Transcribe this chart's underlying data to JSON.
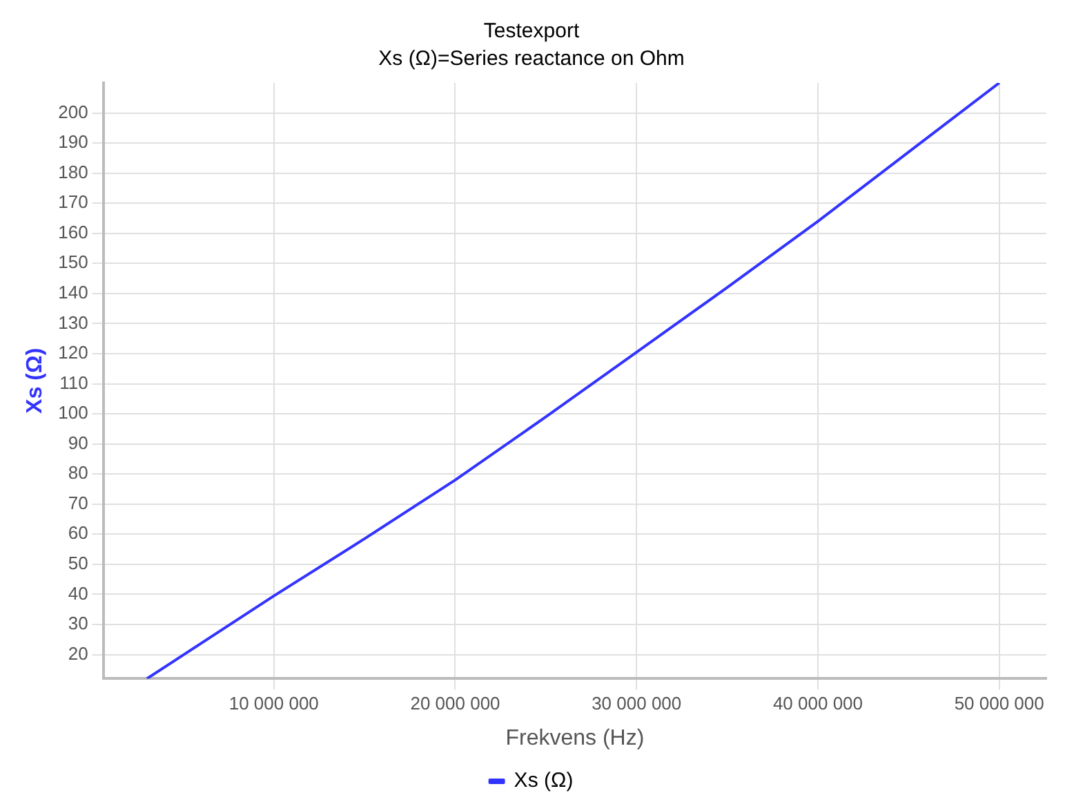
{
  "chart_data": {
    "type": "line",
    "title": "Testexport",
    "subtitle": "Xs (Ω)=Series reactance on Ohm",
    "xlabel": "Frekvens (Hz)",
    "ylabel": "Xs (Ω)",
    "x": [
      3000000,
      10000000,
      15000000,
      20000000,
      25000000,
      30000000,
      35000000,
      40000000,
      45000000,
      50000000
    ],
    "series": [
      {
        "name": "Xs (Ω)",
        "color": "#3333ff",
        "values": [
          12,
          39.5,
          58.5,
          78,
          99,
          120.5,
          142,
          164,
          187,
          210
        ]
      }
    ],
    "xlim": [
      600000,
      52600000
    ],
    "xticks": [
      {
        "value": 10000000,
        "label": "10 000 000"
      },
      {
        "value": 20000000,
        "label": "20 000 000"
      },
      {
        "value": 30000000,
        "label": "30 000 000"
      },
      {
        "value": 40000000,
        "label": "40 000 000"
      },
      {
        "value": 50000000,
        "label": "50 000 000"
      }
    ],
    "ylim": [
      12,
      210
    ],
    "yticks": [
      20,
      30,
      40,
      50,
      60,
      70,
      80,
      90,
      100,
      110,
      120,
      130,
      140,
      150,
      160,
      170,
      180,
      190,
      200
    ],
    "grid": true,
    "legend": "bottom",
    "marker": "none",
    "line_style": "solid"
  }
}
